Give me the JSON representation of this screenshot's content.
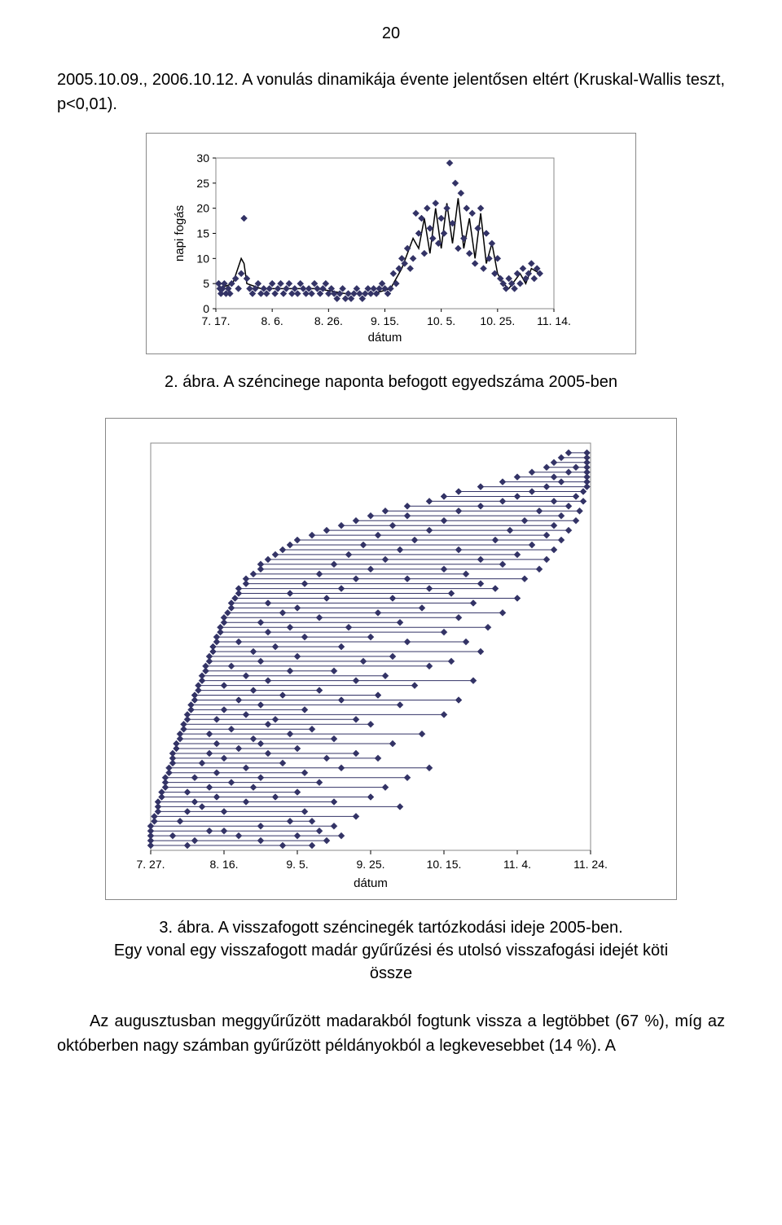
{
  "page_number": "20",
  "paragraph_top": "2005.10.09., 2006.10.12. A vonulás dinamikája évente jelentősen eltért (Kruskal-Wallis teszt, p<0,01).",
  "chart1": {
    "type": "scatter+line",
    "xlabel": "dátum",
    "ylabel": "napi fogás",
    "xticks": [
      "7. 17.",
      "8. 6.",
      "8. 26.",
      "9. 15.",
      "10. 5.",
      "10. 25.",
      "11. 14."
    ],
    "yticks": [
      0,
      5,
      10,
      15,
      20,
      25,
      30
    ],
    "ylim": [
      0,
      30
    ],
    "xlim": [
      0,
      6
    ],
    "background": "#ffffff",
    "plot_border_color": "#888888",
    "line_color": "#000000",
    "marker_color": "#333366",
    "marker_size": 4,
    "line_width": 1.5,
    "series": [
      [
        0.05,
        5
      ],
      [
        0.07,
        4
      ],
      [
        0.09,
        3
      ],
      [
        0.12,
        4
      ],
      [
        0.15,
        5
      ],
      [
        0.18,
        3
      ],
      [
        0.22,
        4
      ],
      [
        0.25,
        3
      ],
      [
        0.28,
        5
      ],
      [
        0.35,
        6
      ],
      [
        0.4,
        4
      ],
      [
        0.45,
        7
      ],
      [
        0.5,
        18
      ],
      [
        0.55,
        6
      ],
      [
        0.6,
        4
      ],
      [
        0.65,
        3
      ],
      [
        0.7,
        4
      ],
      [
        0.75,
        5
      ],
      [
        0.8,
        3
      ],
      [
        0.85,
        4
      ],
      [
        0.9,
        3
      ],
      [
        0.95,
        4
      ],
      [
        1.0,
        5
      ],
      [
        1.05,
        3
      ],
      [
        1.1,
        4
      ],
      [
        1.15,
        5
      ],
      [
        1.2,
        3
      ],
      [
        1.25,
        4
      ],
      [
        1.3,
        5
      ],
      [
        1.35,
        3
      ],
      [
        1.4,
        4
      ],
      [
        1.45,
        3
      ],
      [
        1.5,
        5
      ],
      [
        1.55,
        4
      ],
      [
        1.6,
        3
      ],
      [
        1.65,
        4
      ],
      [
        1.7,
        3
      ],
      [
        1.75,
        5
      ],
      [
        1.8,
        4
      ],
      [
        1.85,
        3
      ],
      [
        1.9,
        4
      ],
      [
        1.95,
        5
      ],
      [
        2.0,
        3
      ],
      [
        2.05,
        4
      ],
      [
        2.1,
        3
      ],
      [
        2.15,
        2
      ],
      [
        2.2,
        3
      ],
      [
        2.25,
        4
      ],
      [
        2.3,
        2
      ],
      [
        2.35,
        3
      ],
      [
        2.4,
        2
      ],
      [
        2.45,
        3
      ],
      [
        2.5,
        4
      ],
      [
        2.55,
        3
      ],
      [
        2.6,
        2
      ],
      [
        2.65,
        3
      ],
      [
        2.7,
        4
      ],
      [
        2.75,
        3
      ],
      [
        2.8,
        4
      ],
      [
        2.85,
        3
      ],
      [
        2.9,
        4
      ],
      [
        2.95,
        5
      ],
      [
        3.0,
        4
      ],
      [
        3.05,
        3
      ],
      [
        3.1,
        4
      ],
      [
        3.15,
        7
      ],
      [
        3.2,
        5
      ],
      [
        3.25,
        8
      ],
      [
        3.3,
        10
      ],
      [
        3.35,
        9
      ],
      [
        3.4,
        12
      ],
      [
        3.45,
        8
      ],
      [
        3.5,
        10
      ],
      [
        3.55,
        19
      ],
      [
        3.6,
        15
      ],
      [
        3.65,
        18
      ],
      [
        3.7,
        11
      ],
      [
        3.75,
        20
      ],
      [
        3.8,
        16
      ],
      [
        3.85,
        14
      ],
      [
        3.9,
        21
      ],
      [
        3.95,
        13
      ],
      [
        4.0,
        18
      ],
      [
        4.05,
        15
      ],
      [
        4.1,
        20
      ],
      [
        4.15,
        29
      ],
      [
        4.2,
        17
      ],
      [
        4.25,
        25
      ],
      [
        4.3,
        12
      ],
      [
        4.35,
        23
      ],
      [
        4.4,
        14
      ],
      [
        4.45,
        20
      ],
      [
        4.5,
        11
      ],
      [
        4.55,
        19
      ],
      [
        4.6,
        9
      ],
      [
        4.65,
        16
      ],
      [
        4.7,
        20
      ],
      [
        4.75,
        8
      ],
      [
        4.8,
        15
      ],
      [
        4.85,
        10
      ],
      [
        4.9,
        13
      ],
      [
        4.95,
        7
      ],
      [
        5.0,
        10
      ],
      [
        5.05,
        6
      ],
      [
        5.1,
        5
      ],
      [
        5.15,
        4
      ],
      [
        5.2,
        6
      ],
      [
        5.25,
        5
      ],
      [
        5.3,
        4
      ],
      [
        5.35,
        7
      ],
      [
        5.4,
        5
      ],
      [
        5.45,
        8
      ],
      [
        5.5,
        6
      ],
      [
        5.55,
        7
      ],
      [
        5.6,
        9
      ],
      [
        5.65,
        6
      ],
      [
        5.7,
        8
      ],
      [
        5.75,
        7
      ]
    ],
    "smooth_line": [
      [
        0.05,
        4
      ],
      [
        0.3,
        5
      ],
      [
        0.45,
        10
      ],
      [
        0.5,
        9
      ],
      [
        0.55,
        5
      ],
      [
        0.8,
        4
      ],
      [
        1.2,
        4
      ],
      [
        1.8,
        4
      ],
      [
        2.3,
        3
      ],
      [
        2.8,
        3
      ],
      [
        3.1,
        4
      ],
      [
        3.3,
        8
      ],
      [
        3.5,
        14
      ],
      [
        3.6,
        12
      ],
      [
        3.7,
        18
      ],
      [
        3.8,
        11
      ],
      [
        3.9,
        20
      ],
      [
        4.0,
        12
      ],
      [
        4.1,
        21
      ],
      [
        4.2,
        13
      ],
      [
        4.3,
        22
      ],
      [
        4.4,
        12
      ],
      [
        4.5,
        18
      ],
      [
        4.6,
        10
      ],
      [
        4.7,
        19
      ],
      [
        4.8,
        9
      ],
      [
        4.9,
        13
      ],
      [
        5.0,
        7
      ],
      [
        5.1,
        5
      ],
      [
        5.2,
        4
      ],
      [
        5.4,
        7
      ],
      [
        5.5,
        5
      ],
      [
        5.6,
        8
      ],
      [
        5.75,
        7
      ]
    ]
  },
  "caption1": "2. ábra. A széncinege naponta befogott egyedszáma 2005-ben",
  "chart2": {
    "type": "range-lines",
    "xlabel": "dátum",
    "xticks": [
      "7. 27.",
      "8. 16.",
      "9. 5.",
      "9. 25.",
      "10. 15.",
      "11. 4.",
      "11. 24."
    ],
    "xlim": [
      0,
      6
    ],
    "background": "#ffffff",
    "plot_border_color": "#888888",
    "line_color": "#333366",
    "marker_color": "#333366",
    "marker_size": 4,
    "rows": [
      {
        "y": 0,
        "pts": [
          0.0,
          0.5,
          1.8,
          2.2
        ]
      },
      {
        "y": 1,
        "pts": [
          0.0,
          0.6,
          1.5,
          2.4
        ]
      },
      {
        "y": 2,
        "pts": [
          0.0,
          0.3,
          1.2,
          2.0,
          2.6
        ]
      },
      {
        "y": 3,
        "pts": [
          0.0,
          0.8,
          1.0,
          2.3
        ]
      },
      {
        "y": 4,
        "pts": [
          0.0,
          1.5,
          2.5
        ]
      },
      {
        "y": 5,
        "pts": [
          0.05,
          0.4,
          1.9,
          2.2
        ]
      },
      {
        "y": 6,
        "pts": [
          0.05,
          2.8
        ]
      },
      {
        "y": 7,
        "pts": [
          0.1,
          0.5,
          1.0,
          2.1
        ]
      },
      {
        "y": 8,
        "pts": [
          0.1,
          0.7,
          3.4
        ]
      },
      {
        "y": 9,
        "pts": [
          0.1,
          0.6,
          1.3,
          2.5
        ]
      },
      {
        "y": 10,
        "pts": [
          0.15,
          0.9,
          1.7,
          3.0
        ]
      },
      {
        "y": 11,
        "pts": [
          0.15,
          0.5,
          2.0
        ]
      },
      {
        "y": 12,
        "pts": [
          0.2,
          0.8,
          1.4,
          3.2
        ]
      },
      {
        "y": 13,
        "pts": [
          0.2,
          1.1,
          2.3
        ]
      },
      {
        "y": 14,
        "pts": [
          0.2,
          0.6,
          1.5,
          3.5
        ]
      },
      {
        "y": 15,
        "pts": [
          0.25,
          0.9,
          2.1
        ]
      },
      {
        "y": 16,
        "pts": [
          0.25,
          1.3,
          2.6,
          3.8
        ]
      },
      {
        "y": 17,
        "pts": [
          0.3,
          0.7,
          1.8
        ]
      },
      {
        "y": 18,
        "pts": [
          0.3,
          1.0,
          2.4,
          3.1
        ]
      },
      {
        "y": 19,
        "pts": [
          0.3,
          0.8,
          1.6,
          2.8
        ]
      },
      {
        "y": 20,
        "pts": [
          0.35,
          1.2,
          2.0
        ]
      },
      {
        "y": 21,
        "pts": [
          0.35,
          0.9,
          1.5,
          3.3
        ]
      },
      {
        "y": 22,
        "pts": [
          0.4,
          1.4,
          2.5
        ]
      },
      {
        "y": 23,
        "pts": [
          0.4,
          0.8,
          1.9,
          3.7
        ]
      },
      {
        "y": 24,
        "pts": [
          0.45,
          1.1,
          2.2
        ]
      },
      {
        "y": 25,
        "pts": [
          0.45,
          1.6,
          3.0
        ]
      },
      {
        "y": 26,
        "pts": [
          0.5,
          0.9,
          1.7,
          2.8
        ]
      },
      {
        "y": 27,
        "pts": [
          0.5,
          1.3,
          4.0
        ]
      },
      {
        "y": 28,
        "pts": [
          0.55,
          1.0,
          2.1
        ]
      },
      {
        "y": 29,
        "pts": [
          0.55,
          1.5,
          3.4
        ]
      },
      {
        "y": 30,
        "pts": [
          0.6,
          1.2,
          2.6,
          4.2
        ]
      },
      {
        "y": 31,
        "pts": [
          0.6,
          1.8,
          3.1
        ]
      },
      {
        "y": 32,
        "pts": [
          0.65,
          1.4,
          2.3
        ]
      },
      {
        "y": 33,
        "pts": [
          0.65,
          1.0,
          3.6
        ]
      },
      {
        "y": 34,
        "pts": [
          0.7,
          1.6,
          2.8,
          4.4
        ]
      },
      {
        "y": 35,
        "pts": [
          0.7,
          1.3,
          3.2
        ]
      },
      {
        "y": 36,
        "pts": [
          0.75,
          1.9,
          2.5
        ]
      },
      {
        "y": 37,
        "pts": [
          0.75,
          1.1,
          3.8
        ]
      },
      {
        "y": 38,
        "pts": [
          0.8,
          1.5,
          2.9,
          4.1
        ]
      },
      {
        "y": 39,
        "pts": [
          0.8,
          2.0,
          3.3
        ]
      },
      {
        "y": 40,
        "pts": [
          0.85,
          1.4,
          4.5
        ]
      },
      {
        "y": 41,
        "pts": [
          0.85,
          1.7,
          2.6
        ]
      },
      {
        "y": 42,
        "pts": [
          0.9,
          1.2,
          3.5,
          4.3
        ]
      },
      {
        "y": 43,
        "pts": [
          0.9,
          2.1,
          3.0
        ]
      },
      {
        "y": 44,
        "pts": [
          0.95,
          1.6,
          4.0
        ]
      },
      {
        "y": 45,
        "pts": [
          0.95,
          1.9,
          2.7,
          4.6
        ]
      },
      {
        "y": 46,
        "pts": [
          1.0,
          1.5,
          3.4
        ]
      },
      {
        "y": 47,
        "pts": [
          1.0,
          2.3,
          4.2
        ]
      },
      {
        "y": 48,
        "pts": [
          1.05,
          1.8,
          3.1,
          4.8
        ]
      },
      {
        "y": 49,
        "pts": [
          1.1,
          2.0,
          3.7
        ]
      },
      {
        "y": 50,
        "pts": [
          1.1,
          1.6,
          4.4
        ]
      },
      {
        "y": 51,
        "pts": [
          1.15,
          2.4,
          3.3,
          5.0
        ]
      },
      {
        "y": 52,
        "pts": [
          1.2,
          1.9,
          4.1
        ]
      },
      {
        "y": 53,
        "pts": [
          1.2,
          2.6,
          3.8,
          4.7
        ]
      },
      {
        "y": 54,
        "pts": [
          1.3,
          2.1,
          4.5
        ]
      },
      {
        "y": 55,
        "pts": [
          1.3,
          2.8,
          3.5,
          5.1
        ]
      },
      {
        "y": 56,
        "pts": [
          1.4,
          2.3,
          4.3
        ]
      },
      {
        "y": 57,
        "pts": [
          1.5,
          3.0,
          4.0,
          5.3
        ]
      },
      {
        "y": 58,
        "pts": [
          1.5,
          2.5,
          4.8
        ]
      },
      {
        "y": 59,
        "pts": [
          1.6,
          3.2,
          4.5,
          5.4
        ]
      },
      {
        "y": 60,
        "pts": [
          1.7,
          2.7,
          5.0
        ]
      },
      {
        "y": 61,
        "pts": [
          1.8,
          3.4,
          4.2,
          5.5
        ]
      },
      {
        "y": 62,
        "pts": [
          1.9,
          2.9,
          5.2
        ]
      },
      {
        "y": 63,
        "pts": [
          2.0,
          3.6,
          4.7,
          5.6
        ]
      },
      {
        "y": 64,
        "pts": [
          2.2,
          3.1,
          5.4
        ]
      },
      {
        "y": 65,
        "pts": [
          2.4,
          3.8,
          4.9,
          5.7
        ]
      },
      {
        "y": 66,
        "pts": [
          2.6,
          3.3,
          5.5
        ]
      },
      {
        "y": 67,
        "pts": [
          2.8,
          4.0,
          5.1,
          5.8
        ]
      },
      {
        "y": 68,
        "pts": [
          3.0,
          3.5,
          5.6
        ]
      },
      {
        "y": 69,
        "pts": [
          3.2,
          4.2,
          5.3,
          5.85
        ]
      },
      {
        "y": 70,
        "pts": [
          3.5,
          4.5,
          5.7
        ]
      },
      {
        "y": 71,
        "pts": [
          3.8,
          4.8,
          5.5,
          5.9
        ]
      },
      {
        "y": 72,
        "pts": [
          4.0,
          5.0,
          5.8
        ]
      },
      {
        "y": 73,
        "pts": [
          4.2,
          5.2,
          5.9
        ]
      },
      {
        "y": 74,
        "pts": [
          4.5,
          5.4,
          5.95
        ]
      },
      {
        "y": 75,
        "pts": [
          4.8,
          5.6,
          5.95
        ]
      },
      {
        "y": 76,
        "pts": [
          5.0,
          5.5,
          5.95
        ]
      },
      {
        "y": 77,
        "pts": [
          5.2,
          5.7,
          5.95
        ]
      },
      {
        "y": 78,
        "pts": [
          5.4,
          5.8,
          5.95
        ]
      },
      {
        "y": 79,
        "pts": [
          5.5,
          5.95
        ]
      },
      {
        "y": 80,
        "pts": [
          5.6,
          5.95
        ]
      },
      {
        "y": 81,
        "pts": [
          5.7,
          5.95
        ]
      }
    ]
  },
  "caption2": "3. ábra. A visszafogott széncinegék tartózkodási ideje 2005-ben.\nEgy vonal egy visszafogott madár gyűrűzési és utolsó visszafogási idejét köti össze",
  "paragraph_bottom": "Az augusztusban meggyűrűzött madarakból fogtunk vissza a legtöbbet (67 %), míg az októberben nagy számban gyűrűzött példányokból a legkevesebbet (14 %). A"
}
